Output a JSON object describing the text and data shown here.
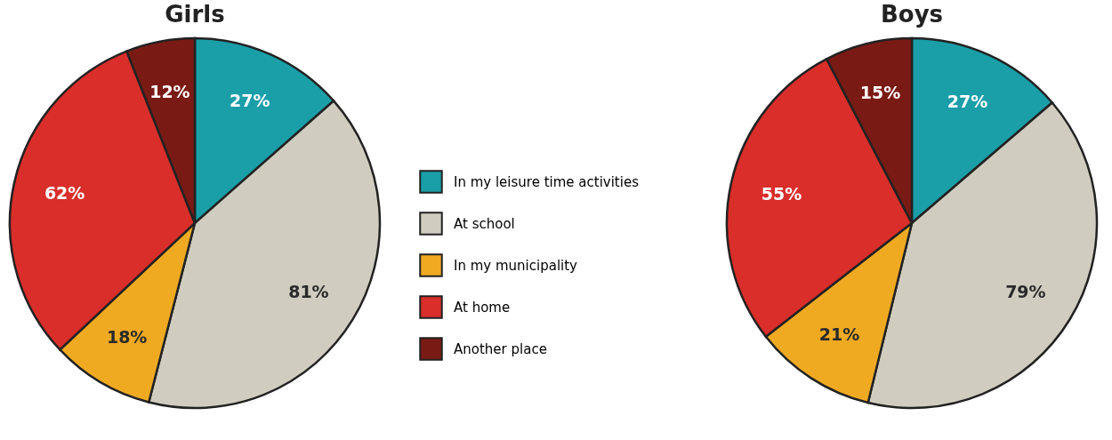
{
  "chart_data": [
    {
      "type": "pie",
      "title": "Girls",
      "categories": [
        "In my leisure time activities",
        "At school",
        "In my municipality",
        "At home",
        "Another place"
      ],
      "values": [
        27,
        81,
        18,
        62,
        12
      ],
      "value_labels": [
        "27%",
        "81%",
        "18%",
        "62%",
        "12%"
      ],
      "colors": [
        "#1a9ea8",
        "#d0cdc0",
        "#f0aa22",
        "#d92e2a",
        "#7a1a14"
      ],
      "legend": "right"
    },
    {
      "type": "pie",
      "title": "Boys",
      "categories": [
        null,
        null,
        null,
        null,
        null
      ],
      "values": [
        27,
        79,
        21,
        55,
        15
      ],
      "value_labels": [
        "27%",
        "79%",
        "21%",
        "55%",
        "15%"
      ],
      "colors": [
        "#1a9ea8",
        "#d0cdc0",
        "#f0aa22",
        "#d92e2a",
        "#7a1a14"
      ]
    }
  ]
}
